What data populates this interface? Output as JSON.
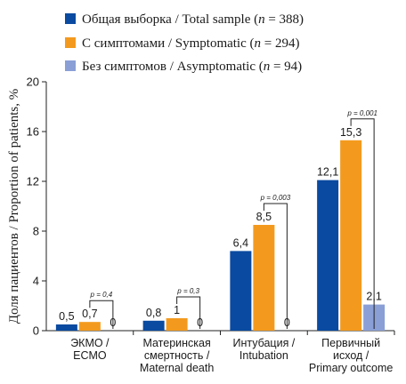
{
  "chart_data": {
    "type": "bar",
    "ylabel": "Доля пациентов / Proportion of patients, %",
    "ylim": [
      0,
      20
    ],
    "yticks": [
      "0",
      "4",
      "8",
      "12",
      "16",
      "20"
    ],
    "categories": [
      [
        "ЭКМО /",
        "ECMO"
      ],
      [
        "Материнская",
        "смертность /",
        "Maternal death"
      ],
      [
        "Интубация /",
        "Intubation"
      ],
      [
        "Первичный",
        "исход /",
        "Primary outcome"
      ]
    ],
    "series": [
      {
        "name": "Общая выборка / Total sample",
        "n": "388",
        "color": "#0a4aa0",
        "values": [
          0.5,
          0.8,
          6.4,
          12.1
        ],
        "labels": [
          "0,5",
          "0,8",
          "6,4",
          "12,1"
        ]
      },
      {
        "name": "С симптомами / Symptomatic",
        "n": "294",
        "color": "#f39a1e",
        "values": [
          0.7,
          1,
          8.5,
          15.3
        ],
        "labels": [
          "0,7",
          "1",
          "8,5",
          "15,3"
        ]
      },
      {
        "name": "Без симптомов / Asymptomatic",
        "n": "94",
        "color": "#8a9fd6",
        "values": [
          0,
          0,
          0,
          2.1
        ],
        "labels": [
          "0",
          "0",
          "0",
          "2,1"
        ]
      }
    ],
    "pvalues": [
      "p = 0,4",
      "p = 0,3",
      "p = 0,003",
      "p = 0,001"
    ],
    "legend_position": "top",
    "grid": false
  }
}
